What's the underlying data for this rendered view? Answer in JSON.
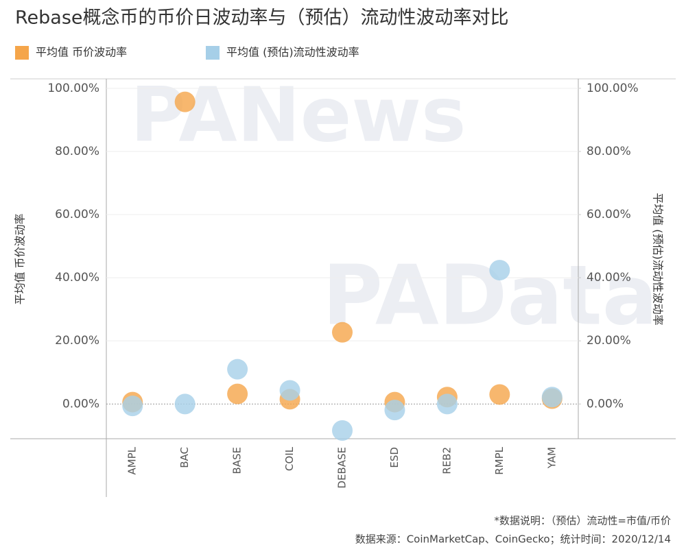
{
  "chart_data": {
    "type": "scatter",
    "title": "Rebase概念币的币价日波动率与（预估）流动性波动率对比",
    "categories": [
      "AMPL",
      "BAC",
      "BASE",
      "COIL",
      "DEBASE",
      "ESD",
      "REB2",
      "RMPL",
      "YAM"
    ],
    "series": [
      {
        "name": "平均值 币价波动率",
        "color": "#f5a54a",
        "values": [
          0.6,
          95.7,
          3.2,
          1.5,
          22.7,
          0.6,
          2.2,
          3.0,
          1.7
        ]
      },
      {
        "name": "平均值 (预估)流动性波动率",
        "color": "#a6cfe8",
        "axis": "y2",
        "values": [
          -0.6,
          0.0,
          11.0,
          4.3,
          -8.4,
          -1.9,
          0.0,
          42.4,
          2.2
        ]
      }
    ],
    "ylabel": "平均值 币价波动率",
    "y2label": "平均值 (预估)流动性波动率",
    "ylim": [
      -11,
      103
    ],
    "yticks": [
      {
        "value": 0,
        "label": "0.00%"
      },
      {
        "value": 20,
        "label": "20.00%"
      },
      {
        "value": 40,
        "label": "40.00%"
      },
      {
        "value": 60,
        "label": "60.00%"
      },
      {
        "value": 80,
        "label": "80.00%"
      },
      {
        "value": 100,
        "label": "100.00%"
      }
    ],
    "y2lim": [
      -11,
      103
    ],
    "y2ticks": [
      {
        "value": 0,
        "label": "0.00%"
      },
      {
        "value": 20,
        "label": "20.00%"
      },
      {
        "value": 40,
        "label": "40.00%"
      },
      {
        "value": 60,
        "label": "60.00%"
      },
      {
        "value": 80,
        "label": "80.00%"
      },
      {
        "value": 100,
        "label": "100.00%"
      }
    ],
    "grid": true,
    "watermarks": [
      "PANews",
      "PAData"
    ],
    "notes": [
      "*数据说明：（预估）流动性=市值/币价",
      "数据来源：CoinMarketCap、CoinGecko；统计时间：2020/12/14"
    ]
  }
}
